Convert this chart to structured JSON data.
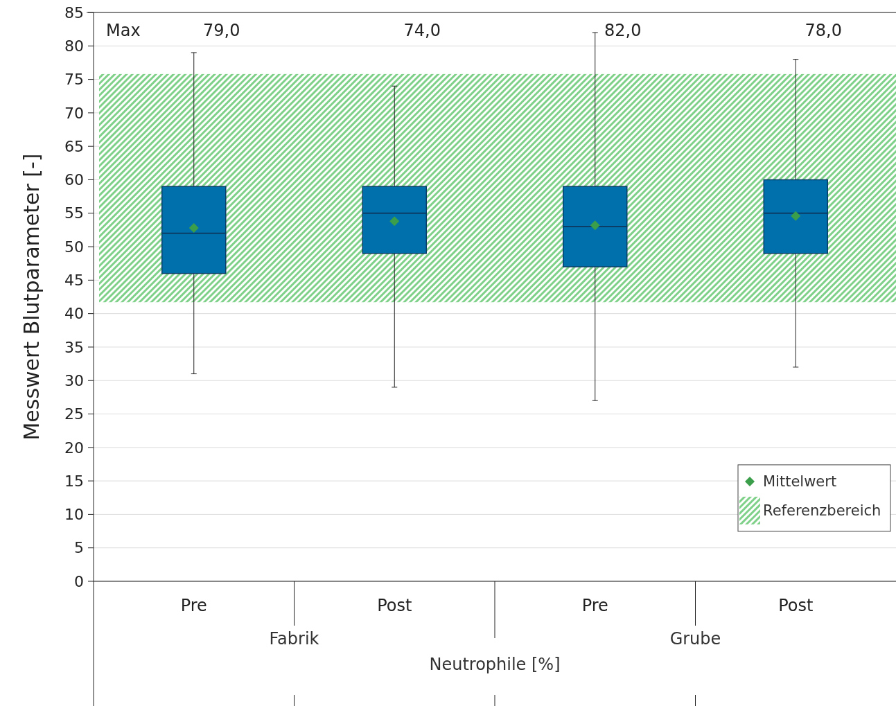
{
  "chart_data": {
    "type": "box",
    "ylabel": "Messwert Blutparameter  [-]",
    "xlabel": "Neutrophile [%]",
    "categories": [
      "Pre",
      "Post",
      "Pre",
      "Post"
    ],
    "series": [
      {
        "color": "#0070ad",
        "boxes": [
          {
            "low": 31,
            "q1": 46,
            "median": 52,
            "q3": 59,
            "high": 79
          },
          {
            "low": 29,
            "q1": 49,
            "median": 55,
            "q3": 59,
            "high": 74
          },
          {
            "low": 27,
            "q1": 47,
            "median": 53,
            "q3": 59,
            "high": 82
          },
          {
            "low": 32,
            "q1": 49,
            "median": 55,
            "q3": 60,
            "high": 78
          }
        ]
      },
      {
        "type": "scatter",
        "name": "Mittelwert",
        "color": "#3a9e4a",
        "values": [
          52.8,
          53.8,
          53.2,
          54.6
        ]
      }
    ],
    "annotations": [
      "Max",
      "79,0",
      "74,0",
      "82,0",
      "78,0",
      "Fabrik",
      "Grube"
    ],
    "bands": [
      {
        "axis": "y",
        "from": 41.7,
        "to": 75.8,
        "label": "Referenzbereich",
        "color": "#7fd18a"
      }
    ],
    "ylim": [
      0,
      85
    ],
    "yticks": [
      0,
      5,
      10,
      15,
      20,
      25,
      30,
      35,
      40,
      45,
      50,
      55,
      60,
      65,
      70,
      75,
      80,
      85
    ],
    "grid": "y",
    "legend": "bottom right",
    "marker": "diamond"
  }
}
